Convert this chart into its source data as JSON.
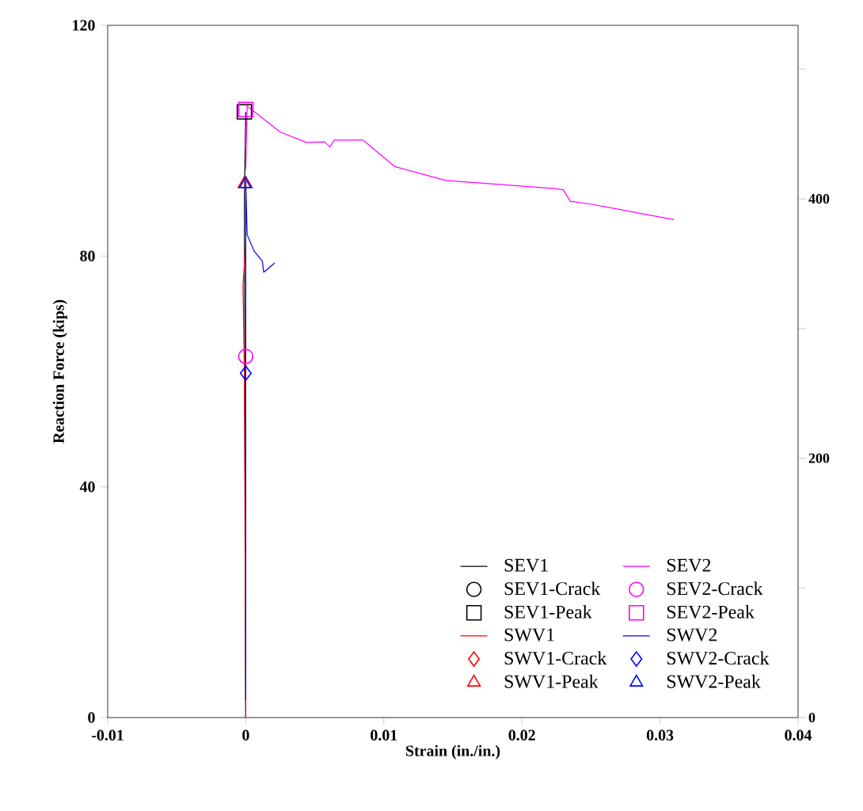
{
  "chart_data": {
    "type": "line",
    "xlabel": "Strain (in./in.)",
    "ylabel": "Reaction Force (kips)",
    "xlim": [
      -0.01,
      0.04
    ],
    "xticks": [
      -0.01,
      0,
      0.01,
      0.02,
      0.03,
      0.04
    ],
    "ylim": [
      0,
      120
    ],
    "yticks": [
      0,
      40,
      80,
      120
    ],
    "y2lim": [
      0,
      533.8
    ],
    "y2ticks": [
      0,
      {
        "value": 100,
        "label": null
      },
      200,
      {
        "value": 300,
        "label": null
      },
      400,
      {
        "value": 500,
        "label": null
      }
    ],
    "legend": "bottom right",
    "grid": false,
    "series": [
      {
        "name": "SEV1",
        "marker": "none",
        "color": "#000000",
        "x": [
          0,
          -0.0001,
          0
        ],
        "values": [
          0,
          90,
          105
        ]
      },
      {
        "name": "SEV1-Crack",
        "type": "scatter",
        "marker": "circle",
        "color": "#000000"
      },
      {
        "name": "SEV1-Peak",
        "type": "scatter",
        "marker": "square",
        "color": "#000000",
        "x": [
          -0.0001
        ],
        "values": [
          105
        ]
      },
      {
        "name": "SWV1",
        "marker": "none",
        "color": "#ff0000",
        "x": [
          0,
          -0.0001,
          -0.0002,
          0
        ],
        "values": [
          0,
          60,
          75,
          82
        ]
      },
      {
        "name": "SWV1-Crack",
        "type": "scatter",
        "marker": "diamond",
        "color": "#ff0000"
      },
      {
        "name": "SWV1-Peak",
        "type": "scatter",
        "marker": "triangle",
        "color": "#ff0000",
        "x": [
          -0.0001
        ],
        "values": [
          92.5
        ]
      },
      {
        "name": "SEV2",
        "marker": "none",
        "color": "#ff00ff",
        "x": [
          0,
          0.0001,
          0.0025,
          0.0044,
          0.0057,
          0.0061,
          0.0064,
          0.0085,
          0.0108,
          0.0145,
          0.0224,
          0.023,
          0.0235,
          0.025,
          0.031
        ],
        "values": [
          95,
          106,
          101.5,
          99.7,
          99.8,
          98.9,
          100.1,
          100.1,
          95.5,
          93.1,
          91.7,
          91.5,
          89.5,
          89,
          86.3
        ]
      },
      {
        "name": "SEV2-Crack",
        "type": "scatter",
        "marker": "circle",
        "color": "#ff00ff",
        "x": [
          0
        ],
        "values": [
          62.6
        ]
      },
      {
        "name": "SEV2-Peak",
        "type": "scatter",
        "marker": "square",
        "color": "#ff00ff",
        "x": [
          0
        ],
        "values": [
          105.4
        ]
      },
      {
        "name": "SWV2",
        "marker": "none",
        "color": "#0000ff",
        "x": [
          0,
          0,
          0.0001,
          0.0006,
          0.0012,
          0.0013,
          0.0021
        ],
        "values": [
          3,
          93,
          83.7,
          80.9,
          79.1,
          77.2,
          78.8
        ]
      },
      {
        "name": "SWV2-Crack",
        "type": "scatter",
        "marker": "diamond",
        "color": "#0000ff",
        "x": [
          0
        ],
        "values": [
          59.7
        ]
      },
      {
        "name": "SWV2-Peak",
        "type": "scatter",
        "marker": "triangle",
        "color": "#0000ff",
        "x": [
          0
        ],
        "values": [
          92.5
        ]
      }
    ]
  }
}
